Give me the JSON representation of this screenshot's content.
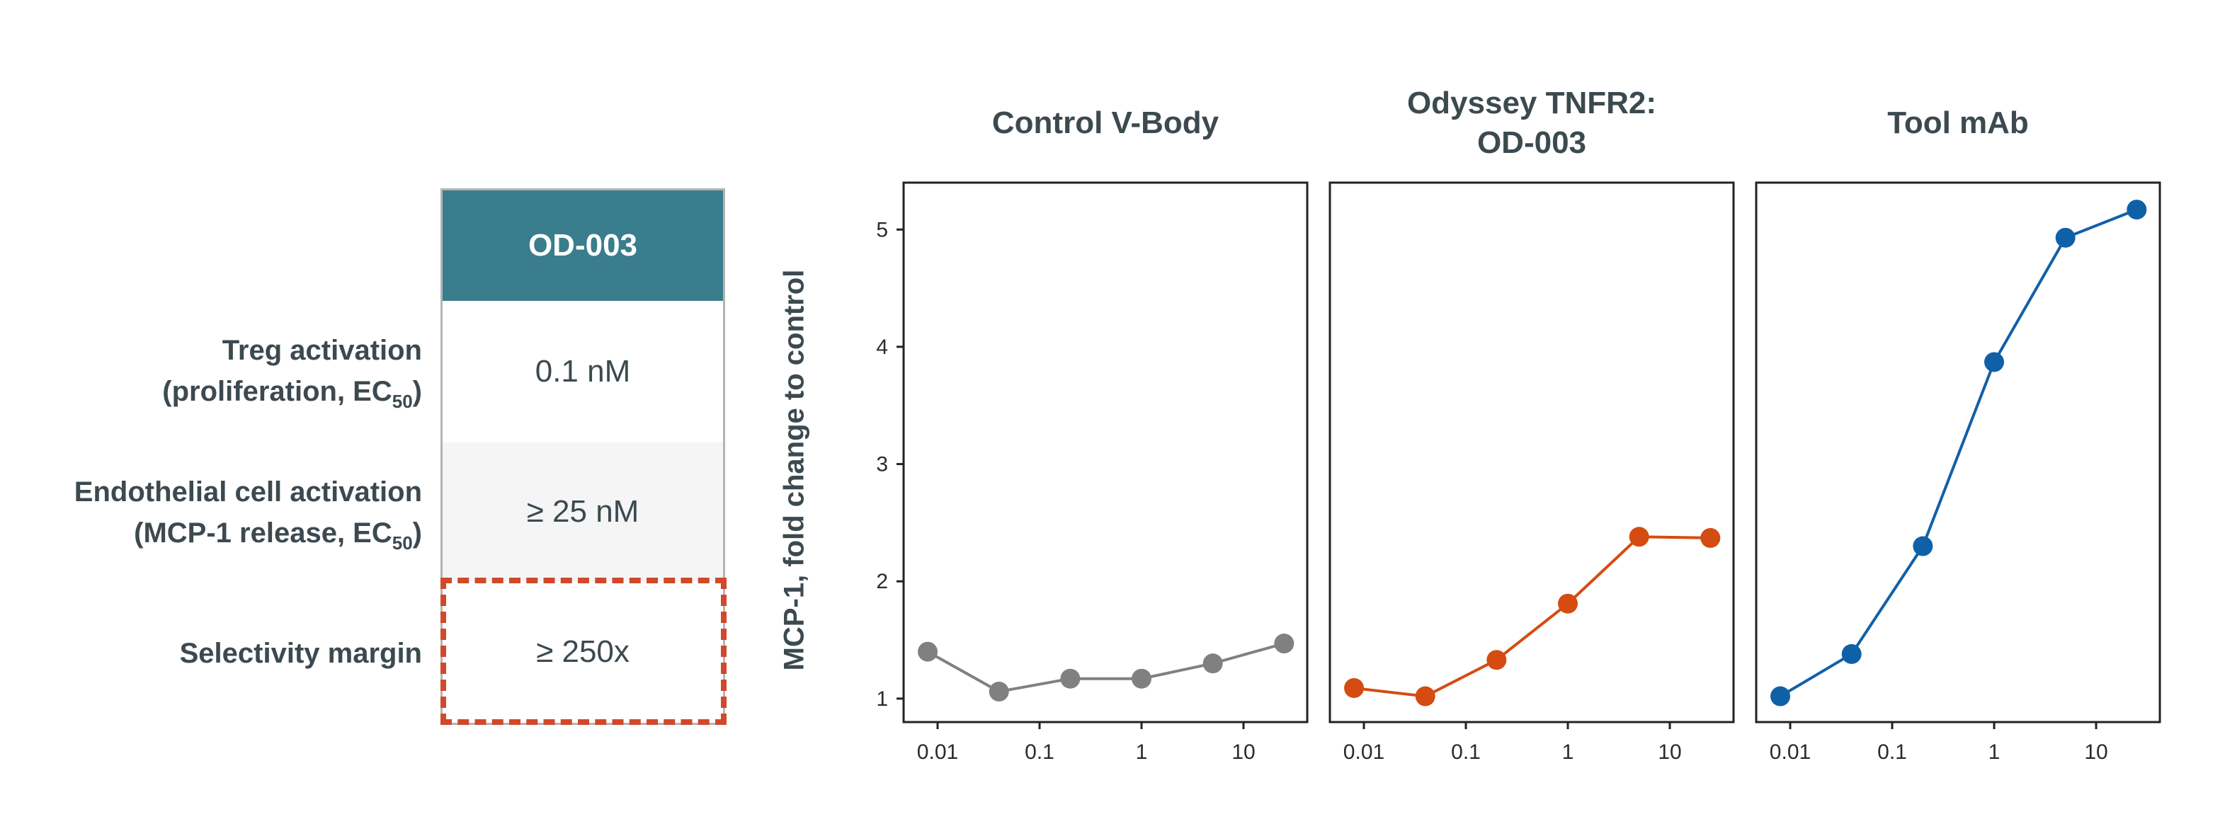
{
  "table": {
    "header": "OD-003",
    "header_color": "#3a7d8c",
    "rows": [
      {
        "label_line1": "Treg activation",
        "label_line2_prefix": "(proliferation, EC",
        "label_sub": "50",
        "label_line2_suffix": ")",
        "value": "0.1 nM",
        "bg": "#ffffff"
      },
      {
        "label_line1": "Endothelial cell activation",
        "label_line2_prefix": "(MCP-1 release, EC",
        "label_sub": "50",
        "label_line2_suffix": ")",
        "value": "≥ 25 nM",
        "bg": "#f5f5f5"
      },
      {
        "label_line1": "Selectivity margin",
        "value": "≥ 250x",
        "bg": "#ffffff"
      }
    ],
    "highlight_color": "#d0492b"
  },
  "chart_data": [
    {
      "type": "line",
      "title": "Control V-Body",
      "ylabel": "MCP-1, fold change to control",
      "xscale": "log",
      "x": [
        0.008,
        0.04,
        0.2,
        1,
        5,
        25
      ],
      "values": [
        1.4,
        1.06,
        1.17,
        1.17,
        1.3,
        1.47
      ],
      "color": "#808080",
      "xticks": [
        "0.01",
        "0.1",
        "1",
        "10"
      ],
      "yticks": [
        "1",
        "2",
        "3",
        "4",
        "5"
      ],
      "ylim": [
        0.8,
        5.4
      ]
    },
    {
      "type": "line",
      "title": "Odyssey TNFR2: OD-003",
      "title_line1": "Odyssey TNFR2:",
      "title_line2": "OD-003",
      "xscale": "log",
      "x": [
        0.008,
        0.04,
        0.2,
        1,
        5,
        25
      ],
      "values": [
        1.09,
        1.02,
        1.33,
        1.81,
        2.38,
        2.37
      ],
      "color": "#d44c12",
      "xticks": [
        "0.01",
        "0.1",
        "1",
        "10"
      ],
      "ylim": [
        0.8,
        5.4
      ]
    },
    {
      "type": "line",
      "title": "Tool mAb",
      "xscale": "log",
      "x": [
        0.008,
        0.04,
        0.2,
        1,
        5,
        25
      ],
      "values": [
        1.02,
        1.38,
        2.3,
        3.87,
        4.93,
        5.17
      ],
      "color": "#1060a8",
      "xticks": [
        "0.01",
        "0.1",
        "1",
        "10"
      ],
      "ylim": [
        0.8,
        5.4
      ]
    }
  ]
}
